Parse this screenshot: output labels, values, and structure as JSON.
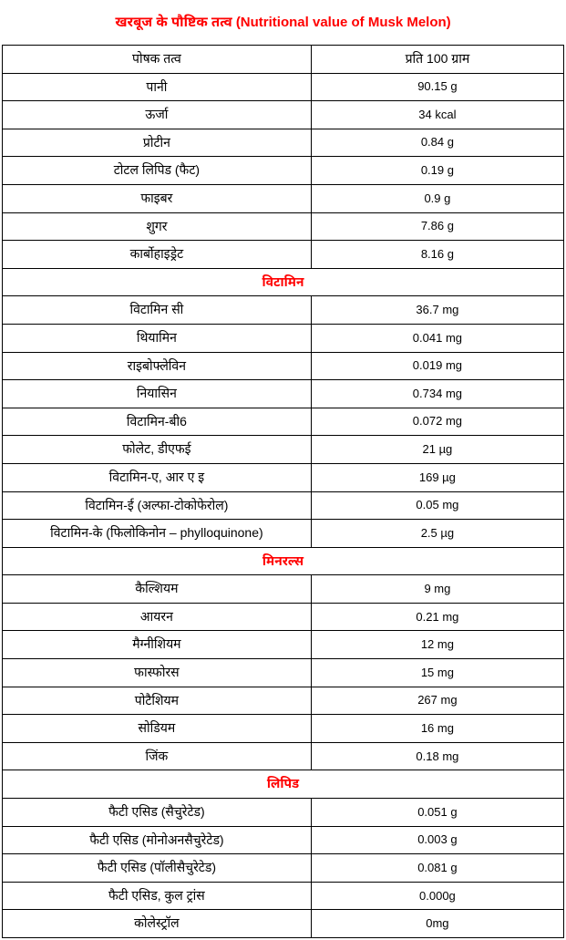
{
  "title": "खरबूज के पौष्टिक तत्व (Nutritional value of Musk Melon)",
  "headers": {
    "nutrient": "पोषक तत्व",
    "per100g": "प्रति 100 ग्राम"
  },
  "sections": {
    "main": [
      {
        "n": "पानी",
        "v": "90.15 g"
      },
      {
        "n": "ऊर्जा",
        "v": "34 kcal"
      },
      {
        "n": "प्रोटीन",
        "v": "0.84 g"
      },
      {
        "n": "टोटल लिपिड (फैट)",
        "v": "0.19 g"
      },
      {
        "n": "फाइबर",
        "v": "0.9 g"
      },
      {
        "n": "शुगर",
        "v": "7.86 g"
      },
      {
        "n": "कार्बोहाइड्रेट",
        "v": "8.16 g"
      }
    ],
    "vitamins_label": "विटामिन",
    "vitamins": [
      {
        "n": "विटामिन सी",
        "v": "36.7 mg"
      },
      {
        "n": "थियामिन",
        "v": "0.041 mg"
      },
      {
        "n": "राइबोफ्लेविन",
        "v": "0.019 mg"
      },
      {
        "n": "नियासिन",
        "v": "0.734 mg"
      },
      {
        "n": "विटामिन-बी6",
        "v": "0.072 mg"
      },
      {
        "n": "फोलेट, डीएफई",
        "v": "21 µg"
      },
      {
        "n": "विटामिन-ए, आर ए इ",
        "v": "169 µg"
      },
      {
        "n": "विटामिन-ई (अल्फा-टोकोफेरोल)",
        "v": "0.05 mg"
      },
      {
        "n": "विटामिन-के (फिलोकिनोन – phylloquinone)",
        "v": "2.5 µg"
      }
    ],
    "minerals_label": "मिनरल्स",
    "minerals": [
      {
        "n": "कैल्शियम",
        "v": "9 mg"
      },
      {
        "n": "आयरन",
        "v": "0.21 mg"
      },
      {
        "n": "मैग्नीशियम",
        "v": "12 mg"
      },
      {
        "n": "फास्फोरस",
        "v": "15 mg"
      },
      {
        "n": "पोटैशियम",
        "v": "267 mg"
      },
      {
        "n": "सोडियम",
        "v": "16 mg"
      },
      {
        "n": "जिंक",
        "v": "0.18 mg"
      }
    ],
    "lipid_label": "लिपिड",
    "lipid": [
      {
        "n": "फैटी एसिड (सैचुरेटेड)",
        "v": "0.051 g"
      },
      {
        "n": "फैटी एसिड (मोनोअनसैचुरेटेड)",
        "v": "0.003 g"
      },
      {
        "n": "फैटी एसिड (पॉलीसैचुरेटेड)",
        "v": "0.081 g"
      },
      {
        "n": "फैटी एसिड, कुल ट्रांस",
        "v": "0.000g"
      },
      {
        "n": "कोलेस्ट्रॉल",
        "v": "0mg"
      }
    ]
  },
  "colors": {
    "title": "#ff0000",
    "section": "#ff0000",
    "border": "#000000",
    "text": "#000000",
    "background": "#ffffff"
  },
  "fontsize": {
    "title": 15,
    "body": 14,
    "value": 13
  }
}
